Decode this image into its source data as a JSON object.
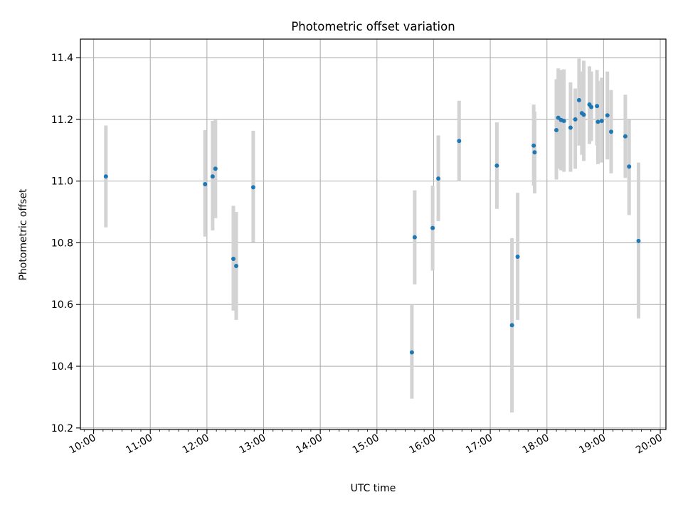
{
  "chart_data": {
    "type": "scatter",
    "title": "Photometric offset variation",
    "xlabel": "UTC time",
    "ylabel": "Photometric offset",
    "xlim": [
      "09:46",
      "20:06"
    ],
    "ylim": [
      10.195,
      11.46
    ],
    "x_ticks": [
      "10:00",
      "11:00",
      "12:00",
      "13:00",
      "14:00",
      "15:00",
      "16:00",
      "17:00",
      "18:00",
      "19:00",
      "20:00"
    ],
    "y_ticks": [
      10.2,
      10.4,
      10.6,
      10.8,
      11.0,
      11.2,
      11.4
    ],
    "grid": true,
    "points": [
      {
        "x": "10:13",
        "y": 11.015,
        "yerr_low": 10.85,
        "yerr_high": 11.18
      },
      {
        "x": "11:58",
        "y": 10.99,
        "yerr_low": 10.82,
        "yerr_high": 11.165
      },
      {
        "x": "12:06",
        "y": 11.015,
        "yerr_low": 10.84,
        "yerr_high": 11.195
      },
      {
        "x": "12:09",
        "y": 11.04,
        "yerr_low": 10.88,
        "yerr_high": 11.2
      },
      {
        "x": "12:28",
        "y": 10.748,
        "yerr_low": 10.58,
        "yerr_high": 10.92
      },
      {
        "x": "12:31",
        "y": 10.725,
        "yerr_low": 10.55,
        "yerr_high": 10.9
      },
      {
        "x": "12:49",
        "y": 10.98,
        "yerr_low": 10.8,
        "yerr_high": 11.163
      },
      {
        "x": "15:37",
        "y": 10.445,
        "yerr_low": 10.295,
        "yerr_high": 10.6
      },
      {
        "x": "15:40",
        "y": 10.818,
        "yerr_low": 10.665,
        "yerr_high": 10.97
      },
      {
        "x": "15:59",
        "y": 10.848,
        "yerr_low": 10.71,
        "yerr_high": 10.985
      },
      {
        "x": "16:05",
        "y": 11.008,
        "yerr_low": 10.87,
        "yerr_high": 11.148
      },
      {
        "x": "16:27",
        "y": 11.13,
        "yerr_low": 11.0,
        "yerr_high": 11.26
      },
      {
        "x": "17:07",
        "y": 11.05,
        "yerr_low": 10.91,
        "yerr_high": 11.19
      },
      {
        "x": "17:23",
        "y": 10.533,
        "yerr_low": 10.25,
        "yerr_high": 10.815
      },
      {
        "x": "17:29",
        "y": 10.755,
        "yerr_low": 10.55,
        "yerr_high": 10.962
      },
      {
        "x": "17:46",
        "y": 11.115,
        "yerr_low": 10.985,
        "yerr_high": 11.248
      },
      {
        "x": "17:47",
        "y": 11.093,
        "yerr_low": 10.96,
        "yerr_high": 11.225
      },
      {
        "x": "18:10",
        "y": 11.165,
        "yerr_low": 11.005,
        "yerr_high": 11.33
      },
      {
        "x": "18:12",
        "y": 11.205,
        "yerr_low": 11.04,
        "yerr_high": 11.365
      },
      {
        "x": "18:15",
        "y": 11.198,
        "yerr_low": 11.035,
        "yerr_high": 11.36
      },
      {
        "x": "18:18",
        "y": 11.195,
        "yerr_low": 11.03,
        "yerr_high": 11.362
      },
      {
        "x": "18:25",
        "y": 11.173,
        "yerr_low": 11.03,
        "yerr_high": 11.32
      },
      {
        "x": "18:30",
        "y": 11.2,
        "yerr_low": 11.04,
        "yerr_high": 11.3
      },
      {
        "x": "18:34",
        "y": 11.262,
        "yerr_low": 11.115,
        "yerr_high": 11.397
      },
      {
        "x": "18:37",
        "y": 11.22,
        "yerr_low": 11.085,
        "yerr_high": 11.355
      },
      {
        "x": "18:39",
        "y": 11.215,
        "yerr_low": 11.065,
        "yerr_high": 11.39
      },
      {
        "x": "18:45",
        "y": 11.248,
        "yerr_low": 11.12,
        "yerr_high": 11.372
      },
      {
        "x": "18:47",
        "y": 11.24,
        "yerr_low": 11.13,
        "yerr_high": 11.355
      },
      {
        "x": "18:53",
        "y": 11.243,
        "yerr_low": 11.115,
        "yerr_high": 11.36
      },
      {
        "x": "18:54",
        "y": 11.192,
        "yerr_low": 11.055,
        "yerr_high": 11.325
      },
      {
        "x": "18:58",
        "y": 11.195,
        "yerr_low": 11.06,
        "yerr_high": 11.335
      },
      {
        "x": "19:04",
        "y": 11.213,
        "yerr_low": 11.07,
        "yerr_high": 11.355
      },
      {
        "x": "19:08",
        "y": 11.16,
        "yerr_low": 11.025,
        "yerr_high": 11.295
      },
      {
        "x": "19:23",
        "y": 11.145,
        "yerr_low": 11.01,
        "yerr_high": 11.28
      },
      {
        "x": "19:27",
        "y": 11.047,
        "yerr_low": 10.89,
        "yerr_high": 11.2
      },
      {
        "x": "19:37",
        "y": 10.806,
        "yerr_low": 10.555,
        "yerr_high": 11.06
      }
    ],
    "colors": {
      "marker": "#1f77b4",
      "errorbar": "#d3d3d3",
      "grid": "#b0b0b0",
      "axis": "#000000"
    }
  }
}
